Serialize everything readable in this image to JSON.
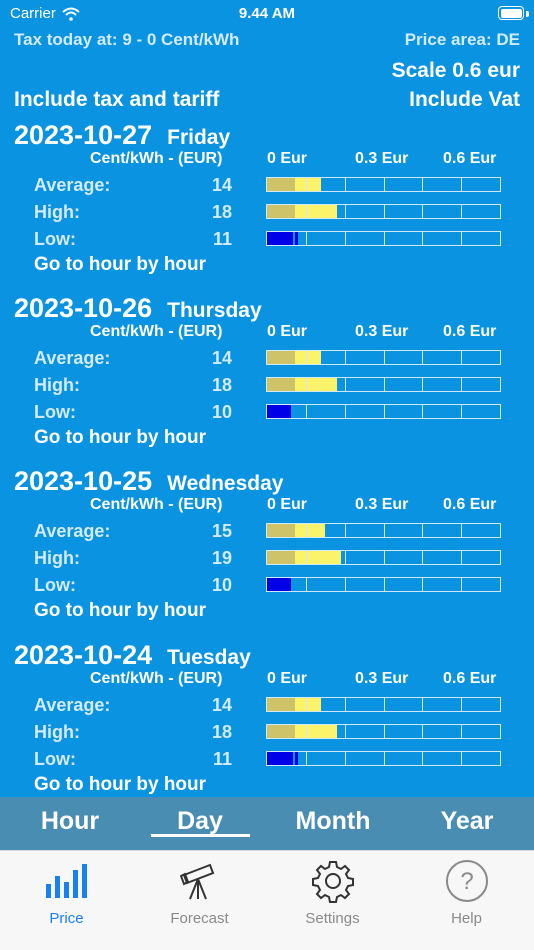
{
  "status": {
    "carrier": "Carrier",
    "time": "9.44 AM"
  },
  "header": {
    "tax_today": "Tax today at: 9 - 0 Cent/kWh",
    "price_area": "Price area: DE",
    "scale": "Scale 0.6 eur",
    "include_tax": "Include tax and tariff",
    "include_vat": "Include Vat"
  },
  "scale_labels": {
    "unit": "Cent/kWh - (EUR)",
    "s0": "0 Eur",
    "s1": "0.3 Eur",
    "s2": "0.6 Eur"
  },
  "row_labels": {
    "average": "Average:",
    "high": "High:",
    "low": "Low:"
  },
  "goto_label": "Go to hour by hour",
  "scale_max": 60,
  "tax_cents": 9,
  "colors": {
    "tax": "#cfc36a",
    "positive": "#fbf36a",
    "low": "#0000e8",
    "bar_bg": "#0a93e0"
  },
  "days": [
    {
      "date": "2023-10-27",
      "weekday": "Friday",
      "average": "14",
      "high": "18",
      "low": "11"
    },
    {
      "date": "2023-10-26",
      "weekday": "Thursday",
      "average": "14",
      "high": "18",
      "low": "10"
    },
    {
      "date": "2023-10-25",
      "weekday": "Wednesday",
      "average": "15",
      "high": "19",
      "low": "10"
    },
    {
      "date": "2023-10-24",
      "weekday": "Tuesday",
      "average": "14",
      "high": "18",
      "low": "11"
    }
  ],
  "range_tabs": [
    {
      "label": "Hour"
    },
    {
      "label": "Day",
      "selected": true
    },
    {
      "label": "Month"
    },
    {
      "label": "Year"
    }
  ],
  "tabbar": [
    {
      "label": "Price",
      "icon": "bar-chart-icon",
      "active": true
    },
    {
      "label": "Forecast",
      "icon": "telescope-icon"
    },
    {
      "label": "Settings",
      "icon": "gear-icon"
    },
    {
      "label": "Help",
      "icon": "question-circle-icon"
    }
  ]
}
